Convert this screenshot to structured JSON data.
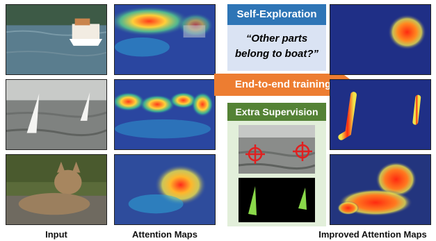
{
  "labels": {
    "input": "Input",
    "attention": "Attention Maps",
    "improved": "Improved Attention Maps"
  },
  "self_exploration": {
    "title": "Self-Exploration",
    "quote_line1": "“Other parts",
    "quote_line2": "belong to boat?”"
  },
  "arrow_label": "End-to-end training",
  "extra_supervision": {
    "title": "Extra Supervision"
  },
  "colors": {
    "blue_header": "#2e75b6",
    "blue_panel": "#dae3f3",
    "green_header": "#548235",
    "green_panel": "#e2efda",
    "arrow": "#ed7d31",
    "target": "#e02020",
    "mask": "#8ad94a"
  }
}
